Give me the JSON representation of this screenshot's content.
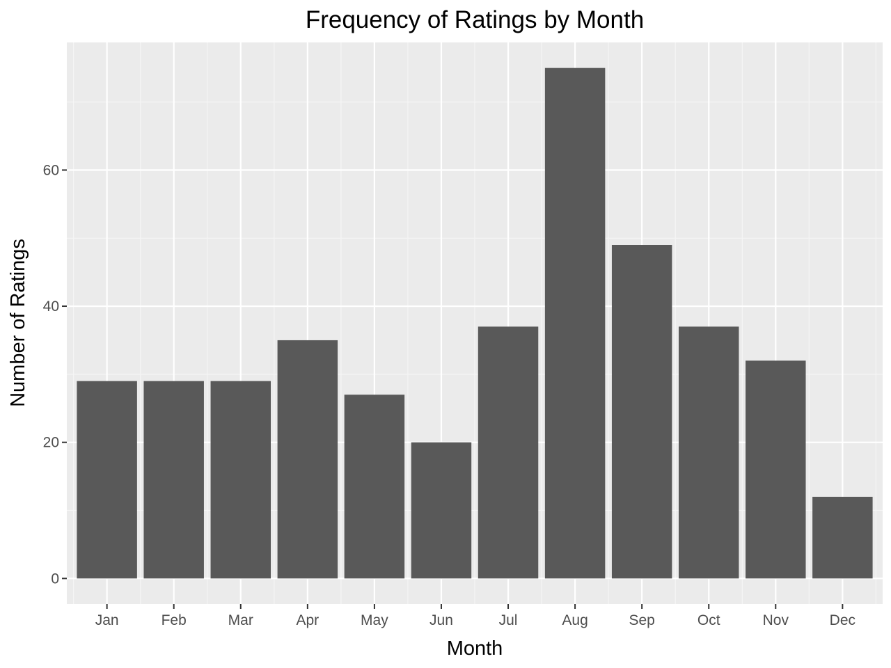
{
  "chart_data": {
    "type": "bar",
    "title": "Frequency of Ratings by Month",
    "xlabel": "Month",
    "ylabel": "Number of Ratings",
    "categories": [
      "Jan",
      "Feb",
      "Mar",
      "Apr",
      "May",
      "Jun",
      "Jul",
      "Aug",
      "Sep",
      "Oct",
      "Nov",
      "Dec"
    ],
    "values": [
      29,
      29,
      29,
      35,
      27,
      20,
      37,
      75,
      49,
      37,
      32,
      12
    ],
    "ylim": [
      -3.75,
      78.75
    ],
    "yticks": [
      0,
      20,
      40,
      60
    ],
    "grid": true,
    "legend": "none",
    "colors": {
      "bar": "#595959",
      "panel": "#ebebeb",
      "grid_major": "#ffffff",
      "grid_minor": "#f5f5f5",
      "tick_text": "#4d4d4d",
      "tick_mark": "#333333"
    }
  }
}
